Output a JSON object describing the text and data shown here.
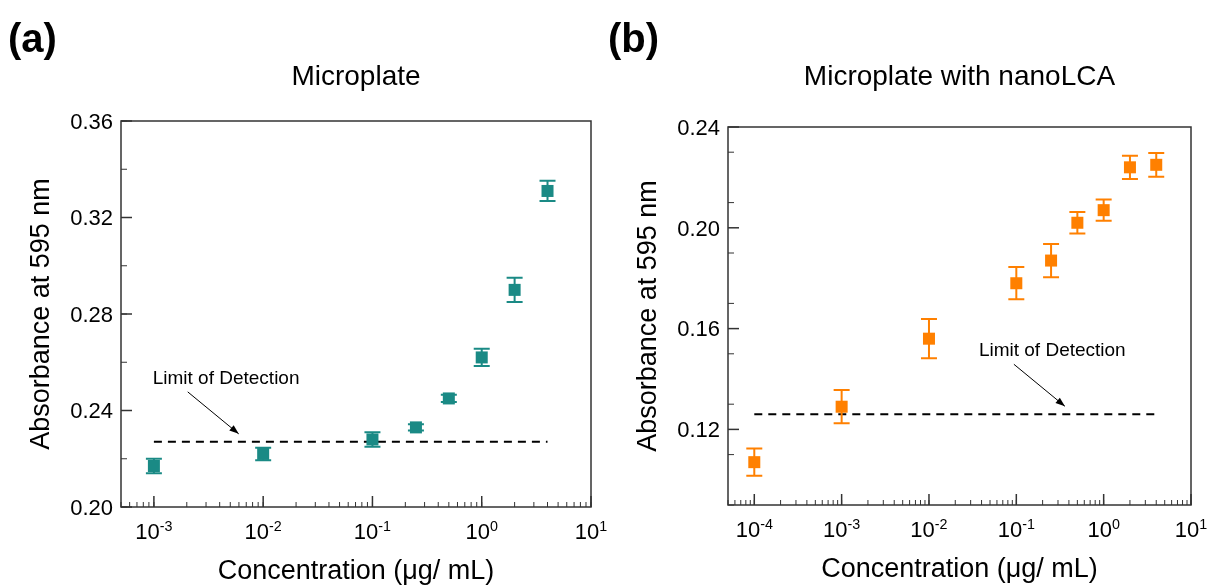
{
  "chart_data": [
    {
      "type": "scatter",
      "title": "Microplate",
      "xlabel": "Concentration (μg/ mL)",
      "ylabel": "Absorbance  at 595 nm",
      "log": "x",
      "marker": "square",
      "xlim": [
        0.0005,
        10
      ],
      "xticks": [
        {
          "value": 0.001,
          "label": "10$^{-3}$"
        },
        {
          "value": 0.01,
          "label": "10$^{-2}$"
        },
        {
          "value": 0.1,
          "label": "10$^{-1}$"
        },
        {
          "value": 1,
          "label": "10$^{0}$"
        },
        {
          "value": 10,
          "label": "10$^{1}$"
        }
      ],
      "ylim": [
        0.2,
        0.36
      ],
      "yticks": [
        {
          "value": 0.2,
          "label": "0.20"
        },
        {
          "value": 0.24,
          "label": "0.24"
        },
        {
          "value": 0.28,
          "label": "0.28"
        },
        {
          "value": 0.32,
          "label": "0.32"
        },
        {
          "value": 0.36,
          "label": "0.36"
        }
      ],
      "x": [
        0.001,
        0.01,
        0.1,
        0.25,
        0.5,
        1,
        2,
        4
      ],
      "series": [
        {
          "color": "#1a8a85",
          "values": [
            0.217,
            0.222,
            0.228,
            0.233,
            0.245,
            0.262,
            0.29,
            0.331
          ],
          "errors": [
            0.003,
            0.0026,
            0.003,
            0.0013,
            0.0015,
            0.0036,
            0.005,
            0.0042
          ]
        }
      ],
      "ref_lines": [
        {
          "axis": "y",
          "value": 0.227,
          "line_style": "dashed",
          "color": "#000000"
        }
      ],
      "annotations": [
        "(a)",
        {
          "text": "Limit of Detection",
          "x": 0.0065,
          "y": 0.227
        }
      ]
    },
    {
      "type": "scatter",
      "title": "Microplate with nanoLCA",
      "xlabel": "Concentration (μg/ mL)",
      "ylabel": "Absorbance  at 595 nm",
      "log": "x",
      "marker": "square",
      "xlim": [
        5e-05,
        10
      ],
      "xticks": [
        {
          "value": 0.0001,
          "label": "10$^{-4}$"
        },
        {
          "value": 0.001,
          "label": "10$^{-3}$"
        },
        {
          "value": 0.01,
          "label": "10$^{-2}$"
        },
        {
          "value": 0.1,
          "label": "10$^{-1}$"
        },
        {
          "value": 1,
          "label": "10$^{0}$"
        },
        {
          "value": 10,
          "label": "10$^{1}$"
        }
      ],
      "ylim": [
        0.09,
        0.24
      ],
      "yticks": [
        {
          "value": 0.12,
          "label": "0.12"
        },
        {
          "value": 0.16,
          "label": "0.16"
        },
        {
          "value": 0.2,
          "label": "0.20"
        },
        {
          "value": 0.24,
          "label": "0.24"
        }
      ],
      "x": [
        0.0001,
        0.001,
        0.01,
        0.1,
        0.25,
        0.5,
        1,
        2,
        4
      ],
      "series": [
        {
          "color": "#ff8000",
          "values": [
            0.107,
            0.129,
            0.156,
            0.178,
            0.187,
            0.202,
            0.207,
            0.224,
            0.225
          ],
          "errors": [
            0.0054,
            0.0066,
            0.0078,
            0.0064,
            0.0066,
            0.0043,
            0.0042,
            0.0046,
            0.0047
          ]
        }
      ],
      "ref_lines": [
        {
          "axis": "y",
          "value": 0.126,
          "line_style": "dashed",
          "color": "#000000"
        }
      ],
      "annotations": [
        "(b)",
        {
          "text": "Limit of Detection",
          "x": 0.4,
          "y": 0.126
        }
      ]
    }
  ]
}
